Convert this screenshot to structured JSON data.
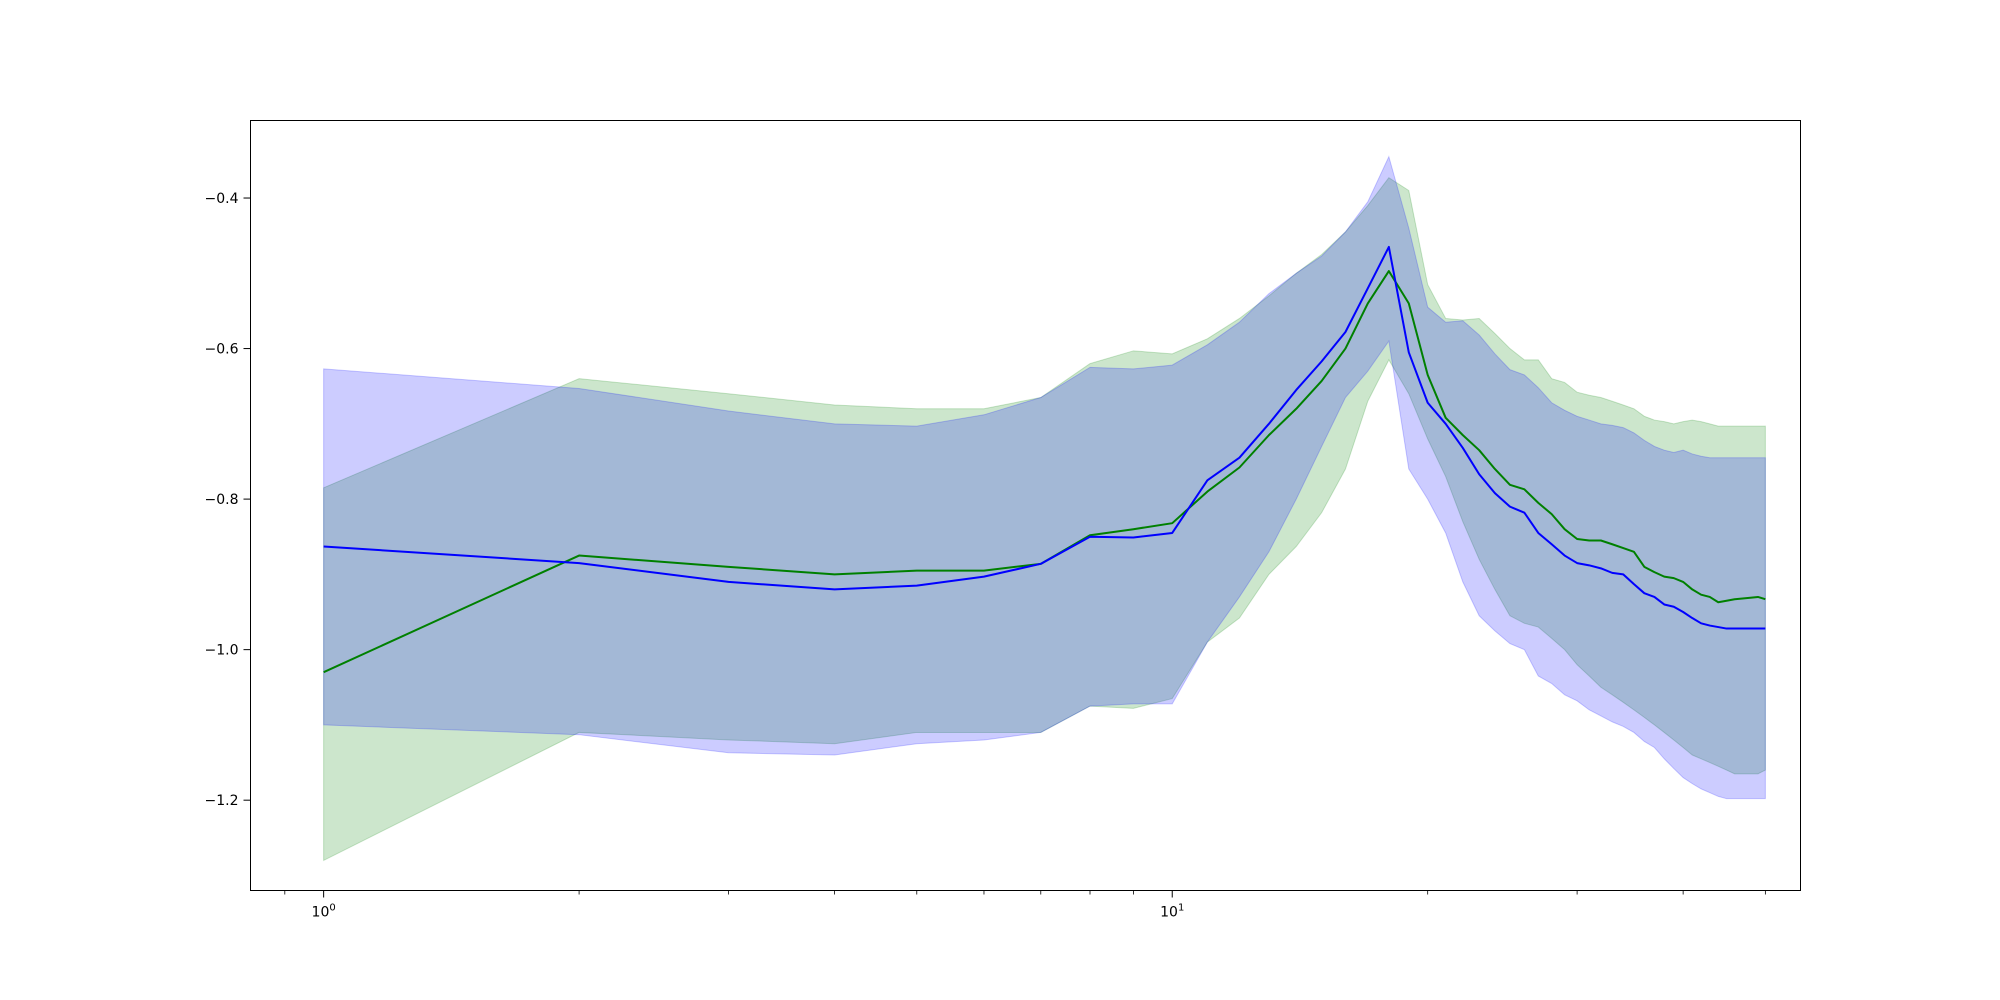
{
  "chart_data": {
    "type": "line",
    "xscale": "log",
    "xlim": [
      0.82,
      55
    ],
    "ylim": [
      -1.32,
      -0.297
    ],
    "x_ticks": [
      {
        "value": 1,
        "base": "10",
        "exp": "0"
      },
      {
        "value": 10,
        "base": "10",
        "exp": "1"
      }
    ],
    "y_ticks": [
      {
        "value": -1.2,
        "label": "−1.2"
      },
      {
        "value": -1.0,
        "label": "−1.0"
      },
      {
        "value": -0.8,
        "label": "−0.8"
      },
      {
        "value": -0.6,
        "label": "−0.6"
      },
      {
        "value": -0.4,
        "label": "−0.4"
      }
    ],
    "grid": false,
    "series": [
      {
        "color": "#008000",
        "band_color": "#008000",
        "band_alpha": 0.2,
        "x": [
          1,
          2,
          3,
          4,
          5,
          6,
          7,
          8,
          9,
          10,
          11,
          12,
          13,
          14,
          15,
          16,
          17,
          18,
          19,
          20,
          21,
          22,
          23,
          24,
          25,
          26,
          27,
          28,
          29,
          30,
          31,
          32,
          33,
          34,
          35,
          36,
          37,
          38,
          39,
          40,
          41,
          42,
          43,
          44,
          45,
          46,
          47,
          48,
          49,
          50
        ],
        "mean": [
          -1.03,
          -0.875,
          -0.89,
          -0.9,
          -0.895,
          -0.895,
          -0.886,
          -0.848,
          -0.84,
          -0.832,
          -0.79,
          -0.758,
          -0.715,
          -0.68,
          -0.643,
          -0.6,
          -0.54,
          -0.497,
          -0.54,
          -0.635,
          -0.692,
          -0.715,
          -0.735,
          -0.76,
          -0.781,
          -0.787,
          -0.805,
          -0.82,
          -0.84,
          -0.853,
          -0.855,
          -0.855,
          -0.86,
          -0.865,
          -0.87,
          -0.89,
          -0.897,
          -0.903,
          -0.905,
          -0.91,
          -0.92,
          -0.927,
          -0.93,
          -0.937,
          -0.935,
          -0.933,
          -0.932,
          -0.931,
          -0.93,
          -0.933
        ],
        "upper": [
          -0.785,
          -0.64,
          -0.66,
          -0.675,
          -0.68,
          -0.68,
          -0.665,
          -0.62,
          -0.603,
          -0.607,
          -0.587,
          -0.56,
          -0.53,
          -0.5,
          -0.475,
          -0.445,
          -0.41,
          -0.373,
          -0.39,
          -0.515,
          -0.56,
          -0.562,
          -0.56,
          -0.58,
          -0.6,
          -0.615,
          -0.615,
          -0.64,
          -0.645,
          -0.658,
          -0.662,
          -0.665,
          -0.67,
          -0.675,
          -0.68,
          -0.69,
          -0.695,
          -0.697,
          -0.7,
          -0.697,
          -0.695,
          -0.697,
          -0.7,
          -0.703,
          -0.703,
          -0.703,
          -0.703,
          -0.703,
          -0.703,
          -0.703
        ],
        "lower": [
          -1.28,
          -1.11,
          -1.12,
          -1.125,
          -1.11,
          -1.11,
          -1.11,
          -1.075,
          -1.078,
          -1.065,
          -0.99,
          -0.958,
          -0.9,
          -0.863,
          -0.818,
          -0.76,
          -0.67,
          -0.615,
          -0.66,
          -0.72,
          -0.77,
          -0.83,
          -0.88,
          -0.92,
          -0.955,
          -0.965,
          -0.97,
          -0.985,
          -1.0,
          -1.02,
          -1.035,
          -1.05,
          -1.06,
          -1.07,
          -1.08,
          -1.09,
          -1.1,
          -1.11,
          -1.12,
          -1.13,
          -1.14,
          -1.145,
          -1.15,
          -1.155,
          -1.16,
          -1.165,
          -1.165,
          -1.165,
          -1.165,
          -1.16
        ]
      },
      {
        "color": "#0000ff",
        "band_color": "#0000ff",
        "band_alpha": 0.2,
        "x": [
          1,
          2,
          3,
          4,
          5,
          6,
          7,
          8,
          9,
          10,
          11,
          12,
          13,
          14,
          15,
          16,
          17,
          18,
          19,
          20,
          21,
          22,
          23,
          24,
          25,
          26,
          27,
          28,
          29,
          30,
          31,
          32,
          33,
          34,
          35,
          36,
          37,
          38,
          39,
          40,
          41,
          42,
          43,
          44,
          45,
          46,
          47,
          48,
          49,
          50
        ],
        "mean": [
          -0.863,
          -0.885,
          -0.91,
          -0.92,
          -0.915,
          -0.903,
          -0.886,
          -0.85,
          -0.851,
          -0.845,
          -0.775,
          -0.745,
          -0.7,
          -0.655,
          -0.617,
          -0.578,
          -0.52,
          -0.465,
          -0.605,
          -0.672,
          -0.7,
          -0.732,
          -0.767,
          -0.792,
          -0.81,
          -0.818,
          -0.845,
          -0.86,
          -0.875,
          -0.885,
          -0.888,
          -0.892,
          -0.898,
          -0.9,
          -0.913,
          -0.925,
          -0.93,
          -0.94,
          -0.943,
          -0.95,
          -0.958,
          -0.965,
          -0.968,
          -0.97,
          -0.972,
          -0.972,
          -0.972,
          -0.972,
          -0.972,
          -0.972
        ],
        "upper": [
          -0.627,
          -0.653,
          -0.683,
          -0.7,
          -0.703,
          -0.688,
          -0.665,
          -0.625,
          -0.627,
          -0.622,
          -0.595,
          -0.565,
          -0.527,
          -0.5,
          -0.477,
          -0.445,
          -0.405,
          -0.345,
          -0.44,
          -0.545,
          -0.565,
          -0.563,
          -0.582,
          -0.607,
          -0.628,
          -0.635,
          -0.652,
          -0.672,
          -0.682,
          -0.69,
          -0.695,
          -0.7,
          -0.702,
          -0.705,
          -0.712,
          -0.722,
          -0.73,
          -0.735,
          -0.738,
          -0.735,
          -0.74,
          -0.743,
          -0.745,
          -0.745,
          -0.745,
          -0.745,
          -0.745,
          -0.745,
          -0.745,
          -0.745
        ],
        "lower": [
          -1.1,
          -1.113,
          -1.137,
          -1.14,
          -1.125,
          -1.12,
          -1.11,
          -1.075,
          -1.072,
          -1.072,
          -0.99,
          -0.93,
          -0.87,
          -0.8,
          -0.73,
          -0.665,
          -0.63,
          -0.59,
          -0.76,
          -0.8,
          -0.845,
          -0.91,
          -0.955,
          -0.975,
          -0.992,
          -1.0,
          -1.035,
          -1.045,
          -1.06,
          -1.068,
          -1.08,
          -1.088,
          -1.096,
          -1.102,
          -1.11,
          -1.122,
          -1.13,
          -1.145,
          -1.158,
          -1.17,
          -1.178,
          -1.185,
          -1.19,
          -1.195,
          -1.198,
          -1.198,
          -1.198,
          -1.198,
          -1.198,
          -1.198
        ]
      }
    ]
  }
}
